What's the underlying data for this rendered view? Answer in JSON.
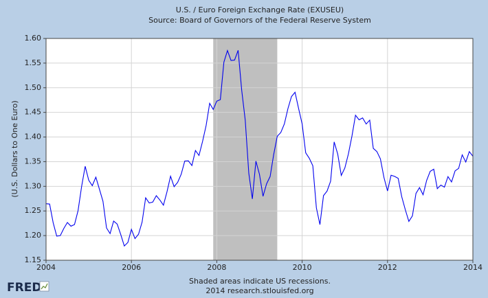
{
  "chart_data": {
    "type": "line",
    "title": "U.S. / Euro Foreign Exchange Rate (EXUSEU)",
    "subtitle": "Source: Board of Governors of the Federal Reserve System",
    "y_label": "(U.S. Dollars to One Euro)",
    "note": "Shaded areas indicate US recessions.",
    "credit": "2014 research.stlouisfed.org",
    "logo": "FRED",
    "color": "#0000ee",
    "grid": true,
    "recessions": [
      {
        "start": "2007-12",
        "end": "2009-06"
      }
    ],
    "xlim": [
      2004,
      2014
    ],
    "xticks": [
      2004,
      2006,
      2008,
      2010,
      2012,
      2014
    ],
    "ylim": [
      1.15,
      1.6
    ],
    "yticks": [
      1.15,
      {
        "value": 1.2,
        "label": "1.20"
      },
      1.25,
      {
        "value": 1.3,
        "label": "1.30"
      },
      1.35,
      {
        "value": 1.4,
        "label": "1.40"
      },
      1.45,
      {
        "value": 1.5,
        "label": "1.50"
      },
      1.55,
      {
        "value": 1.6,
        "label": "1.60"
      }
    ],
    "x": [
      "2004-01",
      "2004-02",
      "2004-03",
      "2004-04",
      "2004-05",
      "2004-06",
      "2004-07",
      "2004-08",
      "2004-09",
      "2004-10",
      "2004-11",
      "2004-12",
      "2005-01",
      "2005-02",
      "2005-03",
      "2005-04",
      "2005-05",
      "2005-06",
      "2005-07",
      "2005-08",
      "2005-09",
      "2005-10",
      "2005-11",
      "2005-12",
      "2006-01",
      "2006-02",
      "2006-03",
      "2006-04",
      "2006-05",
      "2006-06",
      "2006-07",
      "2006-08",
      "2006-09",
      "2006-10",
      "2006-11",
      "2006-12",
      "2007-01",
      "2007-02",
      "2007-03",
      "2007-04",
      "2007-05",
      "2007-06",
      "2007-07",
      "2007-08",
      "2007-09",
      "2007-10",
      "2007-11",
      "2007-12",
      "2008-01",
      "2008-02",
      "2008-03",
      "2008-04",
      "2008-05",
      "2008-06",
      "2008-07",
      "2008-08",
      "2008-09",
      "2008-10",
      "2008-11",
      "2008-12",
      "2009-01",
      "2009-02",
      "2009-03",
      "2009-04",
      "2009-05",
      "2009-06",
      "2009-07",
      "2009-08",
      "2009-09",
      "2009-10",
      "2009-11",
      "2009-12",
      "2010-01",
      "2010-02",
      "2010-03",
      "2010-04",
      "2010-05",
      "2010-06",
      "2010-07",
      "2010-08",
      "2010-09",
      "2010-10",
      "2010-11",
      "2010-12",
      "2011-01",
      "2011-02",
      "2011-03",
      "2011-04",
      "2011-05",
      "2011-06",
      "2011-07",
      "2011-08",
      "2011-09",
      "2011-10",
      "2011-11",
      "2011-12",
      "2012-01",
      "2012-02",
      "2012-03",
      "2012-04",
      "2012-05",
      "2012-06",
      "2012-07",
      "2012-08",
      "2012-09",
      "2012-10",
      "2012-11",
      "2012-12",
      "2013-01",
      "2013-02",
      "2013-03",
      "2013-04",
      "2013-05",
      "2013-06",
      "2013-07",
      "2013-08",
      "2013-09",
      "2013-10",
      "2013-11",
      "2013-12",
      "2014-01"
    ],
    "values": [
      1.2647,
      1.264,
      1.2261,
      1.1989,
      1.2,
      1.2146,
      1.2266,
      1.2191,
      1.2224,
      1.2507,
      1.2997,
      1.3406,
      1.3123,
      1.3013,
      1.3185,
      1.2943,
      1.2697,
      1.2155,
      1.2041,
      1.2295,
      1.2234,
      1.2022,
      1.1789,
      1.1861,
      1.2126,
      1.194,
      1.2028,
      1.2273,
      1.2767,
      1.2661,
      1.2681,
      1.281,
      1.2722,
      1.2617,
      1.2888,
      1.3205,
      1.2993,
      1.308,
      1.3246,
      1.3513,
      1.3518,
      1.3421,
      1.3726,
      1.3626,
      1.391,
      1.4233,
      1.4683,
      1.4559,
      1.4728,
      1.4759,
      1.552,
      1.5754,
      1.5554,
      1.5562,
      1.5759,
      1.4955,
      1.4342,
      1.3266,
      1.2744,
      1.3511,
      1.3244,
      1.2797,
      1.305,
      1.3199,
      1.3646,
      1.4014,
      1.4092,
      1.4266,
      1.4575,
      1.4821,
      1.4908,
      1.4579,
      1.4266,
      1.368,
      1.357,
      1.3417,
      1.2563,
      1.2223,
      1.2811,
      1.2903,
      1.3103,
      1.3901,
      1.3654,
      1.3221,
      1.3371,
      1.3656,
      1.4018,
      1.4442,
      1.4349,
      1.4388,
      1.4264,
      1.4343,
      1.377,
      1.3706,
      1.3556,
      1.3179,
      1.2905,
      1.3224,
      1.3201,
      1.3162,
      1.2789,
      1.2526,
      1.2288,
      1.24,
      1.2856,
      1.2974,
      1.2828,
      1.3119,
      1.3304,
      1.3347,
      1.2953,
      1.3025,
      1.2983,
      1.3197,
      1.3088,
      1.3314,
      1.3364,
      1.3638,
      1.3493,
      1.3704,
      1.361
    ]
  }
}
